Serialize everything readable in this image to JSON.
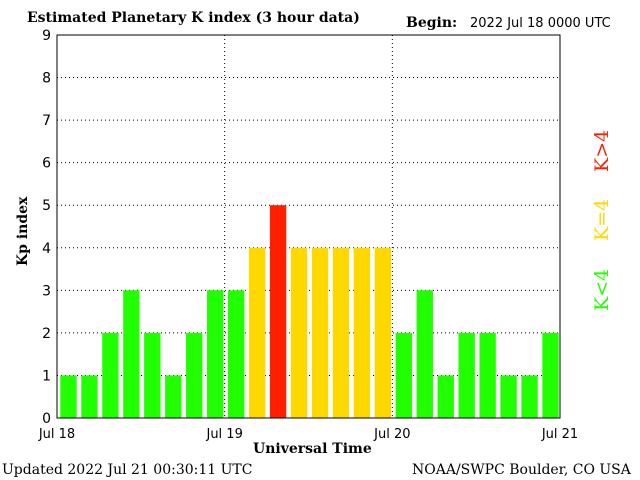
{
  "header": {
    "title": "Estimated Planetary K index (3 hour data)",
    "begin_label": "Begin:",
    "begin_value": "2022 Jul 18 0000 UTC"
  },
  "footer": {
    "updated": "Updated 2022 Jul 21 00:30:11 UTC",
    "source": "NOAA/SWPC Boulder, CO USA"
  },
  "legend": {
    "above": "K>4",
    "equal": "K=4",
    "below": "K<4"
  },
  "colors": {
    "green": "#22ff00",
    "yellow": "#ffd800",
    "red": "#ff2000",
    "grid": "#000000"
  },
  "chart_data": {
    "type": "bar",
    "title": "Estimated Planetary K index (3 hour data)",
    "xlabel": "Universal Time",
    "ylabel": "Kp index",
    "ylim": [
      0,
      9
    ],
    "yticks": [
      "0",
      "1",
      "2",
      "3",
      "4",
      "5",
      "6",
      "7",
      "8",
      "9"
    ],
    "xticks": [
      "Jul 18",
      "Jul 19",
      "Jul 20",
      "Jul 21"
    ],
    "categories": [
      "2022-07-18 00",
      "2022-07-18 03",
      "2022-07-18 06",
      "2022-07-18 09",
      "2022-07-18 12",
      "2022-07-18 15",
      "2022-07-18 18",
      "2022-07-18 21",
      "2022-07-19 00",
      "2022-07-19 03",
      "2022-07-19 06",
      "2022-07-19 09",
      "2022-07-19 12",
      "2022-07-19 15",
      "2022-07-19 18",
      "2022-07-19 21",
      "2022-07-20 00",
      "2022-07-20 03",
      "2022-07-20 06",
      "2022-07-20 09",
      "2022-07-20 12",
      "2022-07-20 15",
      "2022-07-20 18",
      "2022-07-20 21"
    ],
    "values": [
      1,
      1,
      2,
      3,
      2,
      1,
      2,
      3,
      3,
      4,
      5,
      4,
      4,
      4,
      4,
      4,
      2,
      3,
      1,
      2,
      2,
      1,
      1,
      2
    ],
    "grid": true
  }
}
